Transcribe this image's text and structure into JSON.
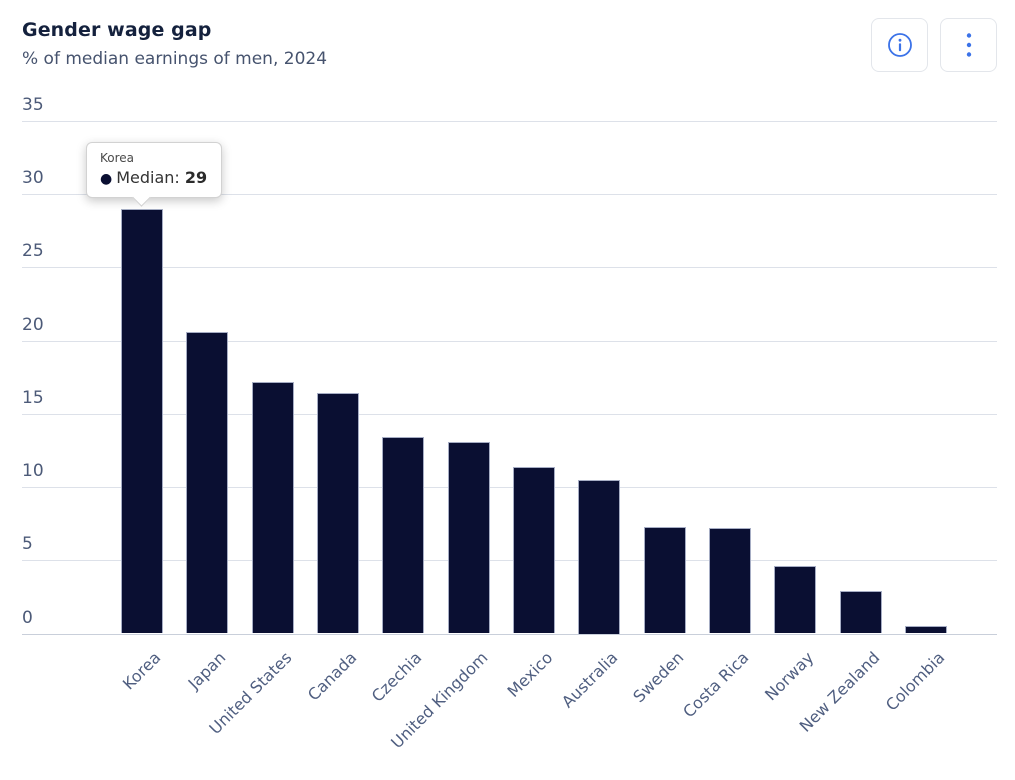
{
  "header": {
    "title": "Gender wage gap",
    "subtitle": "% of median earnings of men, 2024"
  },
  "toolbar": {
    "buttons": [
      {
        "name": "info-button",
        "icon": "info-icon"
      },
      {
        "name": "menu-button",
        "icon": "kebab-menu-icon"
      }
    ]
  },
  "tooltip": {
    "country": "Korea",
    "bullet": "●",
    "series_label": "Median:",
    "value": "29"
  },
  "colors": {
    "bar_fill": "#0a0f32",
    "bar_border": "#a6adc4",
    "gridline": "#dde1e9",
    "axis_line": "#c9cfda",
    "title_text": "#14213d",
    "subtitle_text": "#46536e",
    "tick_text": "#4c5a78",
    "icon_accent": "#3b72e8"
  },
  "chart_data": {
    "type": "bar",
    "title": "Gender wage gap",
    "subtitle": "% of median earnings of men, 2024",
    "categories": [
      "Korea",
      "Japan",
      "United States",
      "Canada",
      "Czechia",
      "United Kingdom",
      "Mexico",
      "Australia",
      "Sweden",
      "Costa Rica",
      "Norway",
      "New Zealand",
      "Colombia"
    ],
    "series": [
      {
        "name": "Median",
        "values": [
          29,
          20.6,
          17.2,
          16.4,
          13.4,
          13.1,
          11.4,
          10.5,
          7.3,
          7.2,
          4.6,
          2.9,
          0.5
        ]
      }
    ],
    "xlabel": "",
    "ylabel": "",
    "ylim": [
      0,
      35
    ],
    "yticks": [
      0,
      5,
      10,
      15,
      20,
      25,
      30,
      35
    ],
    "grid": true,
    "legend": "none",
    "bar_orientation": "vertical",
    "x_label_rotation": -45,
    "highlighted_category": "Korea"
  }
}
